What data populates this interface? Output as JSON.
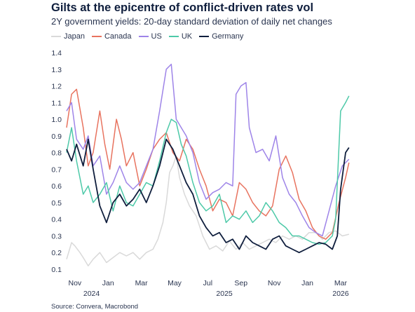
{
  "title": "Gilts at the epicentre of conflict-driven rates vol",
  "subtitle": "2Y government yields: 20-day standard deviation of daily net changes",
  "source": "Source: Convera, Macrobond",
  "chart_data": {
    "type": "line",
    "title": "Gilts at the epicentre of conflict-driven rates vol",
    "subtitle": "2Y government yields: 20-day standard deviation of daily net changes",
    "xlabel": "",
    "ylabel": "",
    "ylim": [
      0.1,
      1.4
    ],
    "yticks": [
      "0.1",
      "0.2",
      "0.3",
      "0.4",
      "0.5",
      "0.6",
      "0.7",
      "0.8",
      "0.9",
      "1.0",
      "1.1",
      "1.2",
      "1.3",
      "1.4"
    ],
    "xlim": [
      0,
      17.6
    ],
    "xticks": [
      {
        "pos": 0.5,
        "label": "Nov"
      },
      {
        "pos": 2.5,
        "label": "Jan"
      },
      {
        "pos": 4.5,
        "label": "Mar"
      },
      {
        "pos": 6.5,
        "label": "May"
      },
      {
        "pos": 8.5,
        "label": "Jul"
      },
      {
        "pos": 10.5,
        "label": "Sep"
      },
      {
        "pos": 12.5,
        "label": "Nov"
      },
      {
        "pos": 14.5,
        "label": "Jan"
      },
      {
        "pos": 16.5,
        "label": "Mar"
      }
    ],
    "year_labels": [
      {
        "pos": 1.5,
        "label": "2024"
      },
      {
        "pos": 9.5,
        "label": "2025"
      },
      {
        "pos": 16.5,
        "label": "2026"
      }
    ],
    "legend_position": "top-left",
    "grid": false,
    "series": [
      {
        "name": "Japan",
        "color": "#d9d9d9",
        "x": [
          0,
          0.3,
          0.5,
          0.8,
          1.0,
          1.3,
          1.6,
          2.0,
          2.4,
          2.8,
          3.2,
          3.6,
          4.0,
          4.4,
          4.8,
          5.2,
          5.5,
          5.8,
          6.0,
          6.2,
          6.4,
          6.6,
          6.8,
          7.1,
          7.4,
          7.8,
          8.2,
          8.6,
          9.0,
          9.4,
          9.8,
          10.2,
          10.6,
          11.0,
          11.4,
          11.8,
          12.2,
          12.6,
          13.0,
          13.4,
          13.8,
          14.2,
          14.6,
          15.0,
          15.4,
          15.8,
          16.2,
          16.6,
          17.0
        ],
        "y": [
          0.16,
          0.26,
          0.24,
          0.2,
          0.17,
          0.12,
          0.16,
          0.2,
          0.14,
          0.17,
          0.2,
          0.18,
          0.2,
          0.16,
          0.2,
          0.22,
          0.28,
          0.38,
          0.5,
          0.68,
          0.72,
          0.78,
          0.65,
          0.55,
          0.48,
          0.42,
          0.3,
          0.22,
          0.24,
          0.21,
          0.27,
          0.22,
          0.26,
          0.22,
          0.24,
          0.26,
          0.28,
          0.26,
          0.3,
          0.28,
          0.3,
          0.28,
          0.32,
          0.32,
          0.28,
          0.32,
          0.33,
          0.3,
          0.31
        ]
      },
      {
        "name": "Canada",
        "color": "#e8735f",
        "x": [
          0,
          0.3,
          0.6,
          1.0,
          1.3,
          1.6,
          2.0,
          2.3,
          2.6,
          3.0,
          3.3,
          3.6,
          4.0,
          4.4,
          4.8,
          5.2,
          5.6,
          6.0,
          6.4,
          6.8,
          7.2,
          7.6,
          8.0,
          8.4,
          8.8,
          9.2,
          9.6,
          10.0,
          10.4,
          10.8,
          11.2,
          11.6,
          12.0,
          12.4,
          12.8,
          13.2,
          13.6,
          14.0,
          14.4,
          14.8,
          15.2,
          15.6,
          16.0,
          16.4,
          16.8,
          17.0
        ],
        "y": [
          0.95,
          1.15,
          1.18,
          0.95,
          0.72,
          0.8,
          1.05,
          0.85,
          0.7,
          1.0,
          0.88,
          0.72,
          0.8,
          0.6,
          0.7,
          0.82,
          0.88,
          0.92,
          0.8,
          0.75,
          0.88,
          0.82,
          0.7,
          0.6,
          0.45,
          0.52,
          0.5,
          0.42,
          0.62,
          0.58,
          0.5,
          0.45,
          0.42,
          0.48,
          0.7,
          0.78,
          0.68,
          0.52,
          0.45,
          0.35,
          0.3,
          0.28,
          0.32,
          0.5,
          0.65,
          0.74
        ]
      },
      {
        "name": "US",
        "color": "#9e84e8",
        "x": [
          0,
          0.3,
          0.6,
          1.0,
          1.3,
          1.6,
          2.0,
          2.4,
          2.8,
          3.2,
          3.6,
          4.0,
          4.4,
          4.8,
          5.2,
          5.6,
          6.0,
          6.3,
          6.6,
          6.9,
          7.2,
          7.6,
          8.0,
          8.4,
          8.8,
          9.2,
          9.6,
          10.0,
          10.2,
          10.5,
          10.8,
          11.0,
          11.4,
          11.8,
          12.2,
          12.6,
          13.0,
          13.4,
          13.8,
          14.2,
          14.6,
          15.0,
          15.4,
          15.8,
          16.2,
          16.6,
          17.0
        ],
        "y": [
          1.05,
          1.1,
          0.88,
          0.82,
          0.9,
          0.72,
          0.78,
          0.55,
          0.62,
          0.72,
          0.62,
          0.58,
          0.62,
          0.72,
          0.82,
          1.05,
          1.3,
          1.33,
          1.0,
          0.95,
          0.9,
          0.8,
          0.62,
          0.52,
          0.56,
          0.58,
          0.62,
          0.6,
          1.15,
          1.2,
          1.22,
          0.95,
          0.8,
          0.82,
          0.75,
          0.9,
          0.65,
          0.55,
          0.5,
          0.42,
          0.35,
          0.32,
          0.3,
          0.45,
          0.6,
          0.72,
          0.76
        ]
      },
      {
        "name": "UK",
        "color": "#4dc9a8",
        "x": [
          0,
          0.3,
          0.6,
          1.0,
          1.3,
          1.6,
          2.0,
          2.4,
          2.8,
          3.2,
          3.6,
          4.0,
          4.4,
          4.8,
          5.2,
          5.6,
          6.0,
          6.3,
          6.6,
          6.9,
          7.2,
          7.6,
          8.0,
          8.4,
          8.8,
          9.2,
          9.6,
          10.0,
          10.4,
          10.8,
          11.2,
          11.6,
          12.0,
          12.4,
          12.8,
          13.2,
          13.6,
          14.0,
          14.4,
          14.8,
          15.2,
          15.6,
          16.0,
          16.2,
          16.5,
          16.8,
          17.0
        ],
        "y": [
          0.8,
          0.95,
          0.75,
          0.55,
          0.6,
          0.5,
          0.55,
          0.62,
          0.45,
          0.6,
          0.5,
          0.48,
          0.55,
          0.62,
          0.6,
          0.75,
          0.92,
          1.0,
          0.98,
          0.85,
          0.78,
          0.62,
          0.5,
          0.45,
          0.48,
          0.55,
          0.38,
          0.42,
          0.4,
          0.45,
          0.38,
          0.42,
          0.5,
          0.45,
          0.38,
          0.35,
          0.3,
          0.3,
          0.28,
          0.26,
          0.25,
          0.26,
          0.3,
          0.4,
          1.05,
          1.1,
          1.14
        ]
      },
      {
        "name": "Germany",
        "color": "#0f1e3d",
        "x": [
          0,
          0.3,
          0.6,
          1.0,
          1.3,
          1.6,
          2.0,
          2.4,
          2.8,
          3.2,
          3.6,
          4.0,
          4.4,
          4.8,
          5.2,
          5.6,
          6.0,
          6.4,
          6.8,
          7.2,
          7.6,
          8.0,
          8.4,
          8.8,
          9.2,
          9.6,
          10.0,
          10.4,
          10.8,
          11.2,
          11.6,
          12.0,
          12.4,
          12.8,
          13.2,
          13.6,
          14.0,
          14.4,
          14.8,
          15.2,
          15.6,
          16.0,
          16.3,
          16.5,
          16.8,
          17.0
        ],
        "y": [
          0.82,
          0.75,
          0.85,
          0.72,
          0.88,
          0.7,
          0.48,
          0.38,
          0.5,
          0.55,
          0.48,
          0.52,
          0.58,
          0.5,
          0.6,
          0.72,
          0.88,
          0.82,
          0.72,
          0.62,
          0.55,
          0.42,
          0.35,
          0.3,
          0.32,
          0.26,
          0.28,
          0.22,
          0.3,
          0.26,
          0.24,
          0.22,
          0.28,
          0.3,
          0.24,
          0.22,
          0.2,
          0.22,
          0.24,
          0.26,
          0.25,
          0.22,
          0.3,
          0.58,
          0.8,
          0.83
        ]
      }
    ]
  }
}
